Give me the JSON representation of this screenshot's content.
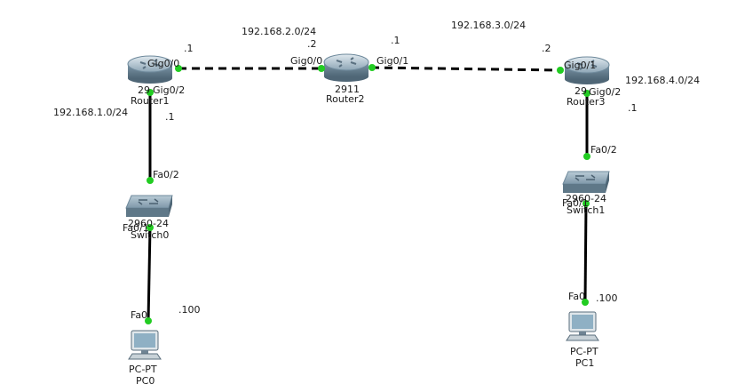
{
  "networks": {
    "net1": "192.168.1.0/24",
    "net2": "192.168.2.0/24",
    "net3": "192.168.3.0/24",
    "net4": "192.168.4.0/24"
  },
  "host_octets": {
    "r1_gig00": ".1",
    "r2_gig00": ".2",
    "r2_gig01": ".1",
    "r3_gig01": ".2",
    "r1_gig02": ".1",
    "r3_gig02": ".1",
    "pc0": ".100",
    "pc1": ".100"
  },
  "devices": {
    "router1": {
      "model": "29",
      "name": "Router1"
    },
    "router2": {
      "model": "2911",
      "name": "Router2"
    },
    "router3": {
      "model": "29",
      "name": "Router3"
    },
    "switch0": {
      "model": "2960-24",
      "name": "Switch0"
    },
    "switch1": {
      "model": "2960-24",
      "name": "Switch1"
    },
    "pc0": {
      "model": "PC-PT",
      "name": "PC0"
    },
    "pc1": {
      "model": "PC-PT",
      "name": "PC1"
    }
  },
  "ports": {
    "r1_gig00": "Gig0/0",
    "r1_gig02": "Gig0/2",
    "r2_gig00": "Gig0/0",
    "r2_gig01": "Gig0/1",
    "r3_gig01": "Gig0/1",
    "r3_gig02": "Gig0/2",
    "sw0_fa02": "Fa0/2",
    "sw0_fa01": "Fa0/1",
    "sw1_fa02": "Fa0/2",
    "sw1_fa01": "Fa0/1",
    "pc0_fa0": "Fa0",
    "pc1_fa0": "Fa0"
  },
  "colors": {
    "link": "#000000",
    "port_up": "#22cc22",
    "router_body": "#6f8a9c",
    "switch_body": "#6f8a9c",
    "pc_body": "#8aa0b0"
  }
}
